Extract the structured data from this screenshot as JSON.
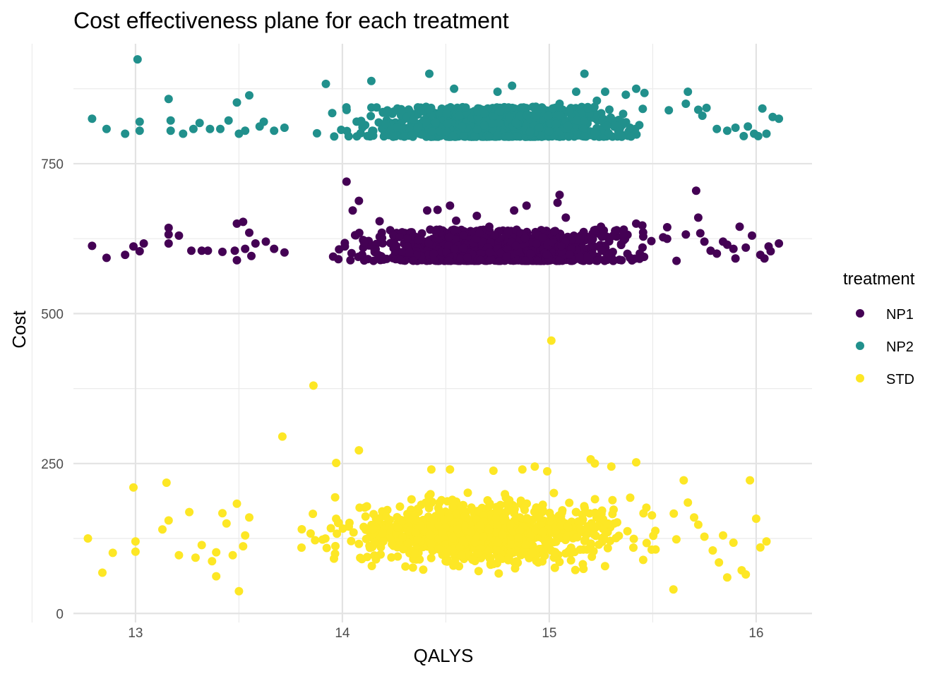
{
  "chart_data": {
    "type": "scatter",
    "title": "Cost effectiveness plane for each treatment",
    "xlabel": "QALYS",
    "ylabel": "Cost",
    "xlim": [
      12.7,
      16.27
    ],
    "ylim": [
      -15,
      950
    ],
    "x_ticks": [
      13,
      14,
      15,
      16
    ],
    "y_ticks": [
      0,
      250,
      500,
      750
    ],
    "x_tick_labels": [
      "13",
      "14",
      "15",
      "16"
    ],
    "y_tick_labels": [
      "0",
      "250",
      "500",
      "750"
    ],
    "grid": true,
    "legend": {
      "title": "treatment",
      "placement": "right",
      "entries": [
        {
          "label": "NP1",
          "color": "#440154"
        },
        {
          "label": "NP2",
          "color": "#21908C"
        },
        {
          "label": "STD",
          "color": "#FDE725"
        }
      ]
    },
    "series": [
      {
        "name": "NP1",
        "color": "#440154",
        "points": [
          [
            12.79,
            613
          ],
          [
            12.86,
            593
          ],
          [
            12.95,
            598
          ],
          [
            12.99,
            612
          ],
          [
            13.02,
            604
          ],
          [
            13.04,
            617
          ],
          [
            13.16,
            617
          ],
          [
            13.16,
            643
          ],
          [
            13.16,
            632
          ],
          [
            13.21,
            630
          ],
          [
            13.27,
            605
          ],
          [
            13.32,
            605
          ],
          [
            13.35,
            605
          ],
          [
            13.42,
            603
          ],
          [
            13.48,
            605
          ],
          [
            13.49,
            650
          ],
          [
            13.49,
            589
          ],
          [
            13.52,
            653
          ],
          [
            13.53,
            608
          ],
          [
            13.55,
            635
          ],
          [
            13.56,
            596
          ],
          [
            13.58,
            617
          ],
          [
            13.63,
            620
          ],
          [
            13.67,
            608
          ],
          [
            13.72,
            602
          ],
          [
            14.02,
            720
          ],
          [
            14.05,
            672
          ],
          [
            14.08,
            688
          ],
          [
            14.18,
            654
          ],
          [
            14.41,
            672
          ],
          [
            14.46,
            673
          ],
          [
            14.52,
            680
          ],
          [
            14.55,
            655
          ],
          [
            14.65,
            663
          ],
          [
            14.71,
            645
          ],
          [
            14.83,
            672
          ],
          [
            14.89,
            680
          ],
          [
            15.04,
            685
          ],
          [
            15.05,
            698
          ],
          [
            15.08,
            660
          ],
          [
            15.25,
            645
          ],
          [
            15.36,
            640
          ],
          [
            15.42,
            650
          ],
          [
            15.45,
            647
          ],
          [
            15.57,
            644
          ],
          [
            15.66,
            632
          ],
          [
            15.71,
            705
          ],
          [
            15.72,
            660
          ],
          [
            15.73,
            634
          ],
          [
            15.75,
            620
          ],
          [
            15.81,
            600
          ],
          [
            15.86,
            615
          ],
          [
            15.89,
            608
          ],
          [
            15.9,
            592
          ],
          [
            15.92,
            645
          ],
          [
            15.98,
            630
          ],
          [
            16.04,
            592
          ],
          [
            16.06,
            612
          ],
          [
            16.07,
            604
          ],
          [
            16.11,
            617
          ],
          [
            16.02,
            598
          ],
          [
            15.95,
            610
          ],
          [
            15.84,
            620
          ],
          [
            15.78,
            605
          ]
        ],
        "cloud": {
          "x_range": [
            13.75,
            15.75
          ],
          "y_range": [
            588,
            640
          ],
          "count": 1000
        }
      },
      {
        "name": "NP2",
        "color": "#21908C",
        "points": [
          [
            12.79,
            825
          ],
          [
            12.86,
            808
          ],
          [
            12.95,
            800
          ],
          [
            13.01,
            924
          ],
          [
            13.02,
            820
          ],
          [
            13.02,
            805
          ],
          [
            13.16,
            858
          ],
          [
            13.17,
            822
          ],
          [
            13.17,
            805
          ],
          [
            13.23,
            800
          ],
          [
            13.28,
            808
          ],
          [
            13.31,
            818
          ],
          [
            13.36,
            808
          ],
          [
            13.41,
            808
          ],
          [
            13.45,
            822
          ],
          [
            13.49,
            852
          ],
          [
            13.5,
            800
          ],
          [
            13.53,
            805
          ],
          [
            13.55,
            864
          ],
          [
            13.6,
            812
          ],
          [
            13.62,
            820
          ],
          [
            13.67,
            805
          ],
          [
            13.72,
            810
          ],
          [
            13.92,
            883
          ],
          [
            14.14,
            888
          ],
          [
            14.42,
            900
          ],
          [
            14.54,
            875
          ],
          [
            14.75,
            870
          ],
          [
            14.82,
            880
          ],
          [
            15.05,
            850
          ],
          [
            15.13,
            870
          ],
          [
            15.17,
            900
          ],
          [
            15.23,
            855
          ],
          [
            15.27,
            870
          ],
          [
            15.37,
            865
          ],
          [
            15.42,
            875
          ],
          [
            15.46,
            868
          ],
          [
            15.66,
            850
          ],
          [
            15.67,
            870
          ],
          [
            15.72,
            840
          ],
          [
            15.74,
            830
          ],
          [
            15.76,
            843
          ],
          [
            15.81,
            808
          ],
          [
            15.86,
            805
          ],
          [
            15.9,
            810
          ],
          [
            15.96,
            812
          ],
          [
            15.99,
            800
          ],
          [
            16.03,
            842
          ],
          [
            16.05,
            800
          ],
          [
            16.08,
            828
          ],
          [
            16.11,
            825
          ],
          [
            16.01,
            796
          ],
          [
            15.94,
            796
          ]
        ],
        "cloud": {
          "x_range": [
            13.75,
            15.75
          ],
          "y_range": [
            795,
            845
          ],
          "count": 1000
        }
      },
      {
        "name": "STD",
        "color": "#FDE725",
        "points": [
          [
            12.77,
            125
          ],
          [
            12.84,
            68
          ],
          [
            12.89,
            101
          ],
          [
            12.99,
            210
          ],
          [
            13.0,
            120
          ],
          [
            13.0,
            103
          ],
          [
            13.13,
            140
          ],
          [
            13.15,
            218
          ],
          [
            13.16,
            155
          ],
          [
            13.21,
            97
          ],
          [
            13.26,
            169
          ],
          [
            13.29,
            93
          ],
          [
            13.32,
            114
          ],
          [
            13.37,
            87
          ],
          [
            13.39,
            62
          ],
          [
            13.39,
            102
          ],
          [
            13.42,
            167
          ],
          [
            13.44,
            150
          ],
          [
            13.47,
            97
          ],
          [
            13.49,
            183
          ],
          [
            13.5,
            37
          ],
          [
            13.52,
            112
          ],
          [
            13.53,
            130
          ],
          [
            13.55,
            160
          ],
          [
            13.71,
            295
          ],
          [
            13.86,
            380
          ],
          [
            13.97,
            251
          ],
          [
            14.08,
            272
          ],
          [
            14.43,
            240
          ],
          [
            14.52,
            240
          ],
          [
            14.73,
            238
          ],
          [
            14.87,
            240
          ],
          [
            14.93,
            245
          ],
          [
            14.99,
            237
          ],
          [
            15.01,
            455
          ],
          [
            15.2,
            257
          ],
          [
            15.22,
            250
          ],
          [
            15.3,
            245
          ],
          [
            15.42,
            252
          ],
          [
            15.6,
            40
          ],
          [
            15.65,
            222
          ],
          [
            15.67,
            185
          ],
          [
            15.7,
            160
          ],
          [
            15.72,
            148
          ],
          [
            15.75,
            128
          ],
          [
            15.79,
            105
          ],
          [
            15.82,
            85
          ],
          [
            15.86,
            60
          ],
          [
            15.89,
            118
          ],
          [
            15.93,
            72
          ],
          [
            15.97,
            222
          ],
          [
            16.0,
            158
          ],
          [
            16.02,
            110
          ],
          [
            16.05,
            120
          ],
          [
            15.95,
            65
          ],
          [
            15.84,
            130
          ]
        ],
        "cloud": {
          "x_range": [
            13.6,
            15.8
          ],
          "y_range": [
            40,
            230
          ],
          "count": 900
        }
      }
    ]
  }
}
